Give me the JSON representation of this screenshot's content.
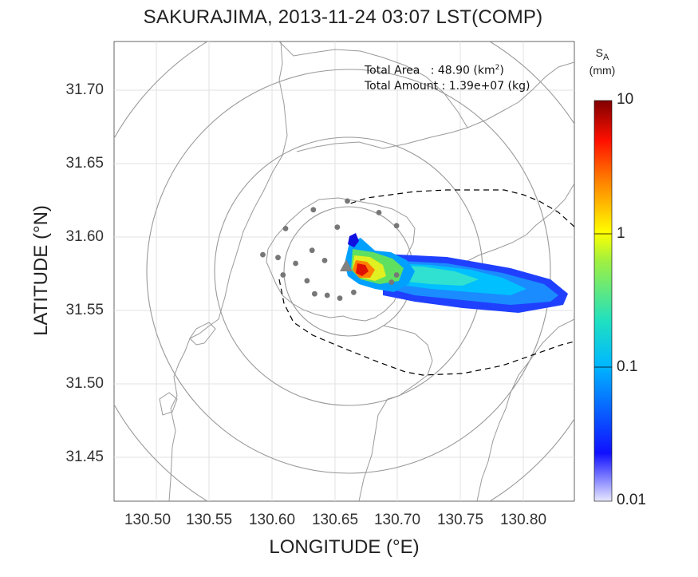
{
  "title": "SAKURAJIMA, 2013-11-24 03:07 LST(COMP)",
  "axes": {
    "xlabel": "LONGITUDE (°E)",
    "ylabel": "LATITUDE (°N)",
    "xticks": [
      "130.50",
      "130.55",
      "130.60",
      "130.65",
      "130.70",
      "130.75",
      "130.80"
    ],
    "yticks": [
      "31.70",
      "31.65",
      "31.60",
      "31.55",
      "31.50",
      "31.45"
    ],
    "xlim": [
      130.475,
      130.84
    ],
    "ylim": [
      31.418,
      31.735
    ]
  },
  "stats": {
    "area_label": "Total Area   : 48.90 (km",
    "area_sup": "2",
    "area_close": ")",
    "amount_label": "Total Amount : 1.39e+07 (kg)"
  },
  "colorbar": {
    "symbol": "S",
    "subscript": "A",
    "unit": "(mm)",
    "ticks": [
      "10",
      "1",
      "0.1",
      "0.01"
    ],
    "scale": "log",
    "range": [
      0.01,
      10
    ],
    "colors": [
      "#e8e8ff",
      "#1010ff",
      "#00c8ff",
      "#40e0a0",
      "#ffff00",
      "#ff8000",
      "#ff0000",
      "#800000"
    ]
  },
  "chart_data": {
    "type": "heatmap",
    "title": "SAKURAJIMA, 2013-11-24 03:07 LST(COMP)",
    "xlabel": "LONGITUDE (°E)",
    "ylabel": "LATITUDE (°N)",
    "vent": {
      "lon": 130.657,
      "lat": 31.58
    },
    "plume_axis": [
      {
        "lon": 130.665,
        "lat": 31.578,
        "sa": 6.0
      },
      {
        "lon": 130.68,
        "lat": 31.576,
        "sa": 1.5
      },
      {
        "lon": 130.7,
        "lat": 31.573,
        "sa": 0.7
      },
      {
        "lon": 130.73,
        "lat": 31.57,
        "sa": 0.35
      },
      {
        "lon": 130.76,
        "lat": 31.566,
        "sa": 0.2
      },
      {
        "lon": 130.79,
        "lat": 31.563,
        "sa": 0.12
      },
      {
        "lon": 130.82,
        "lat": 31.56,
        "sa": 0.08
      }
    ],
    "stations": [
      {
        "lon": 130.66,
        "lat": 31.625
      },
      {
        "lon": 130.633,
        "lat": 31.619
      },
      {
        "lon": 130.685,
        "lat": 31.617
      },
      {
        "lon": 130.611,
        "lat": 31.606
      },
      {
        "lon": 130.652,
        "lat": 31.607
      },
      {
        "lon": 130.699,
        "lat": 31.608
      },
      {
        "lon": 130.593,
        "lat": 31.588
      },
      {
        "lon": 130.632,
        "lat": 31.591
      },
      {
        "lon": 130.605,
        "lat": 31.586
      },
      {
        "lon": 130.619,
        "lat": 31.582
      },
      {
        "lon": 130.642,
        "lat": 31.584
      },
      {
        "lon": 130.609,
        "lat": 31.574
      },
      {
        "lon": 130.628,
        "lat": 31.57
      },
      {
        "lon": 130.699,
        "lat": 31.574
      },
      {
        "lon": 130.695,
        "lat": 31.569
      },
      {
        "lon": 130.634,
        "lat": 31.561
      },
      {
        "lon": 130.644,
        "lat": 31.56
      },
      {
        "lon": 130.654,
        "lat": 31.558
      },
      {
        "lon": 130.665,
        "lat": 31.562
      }
    ]
  }
}
